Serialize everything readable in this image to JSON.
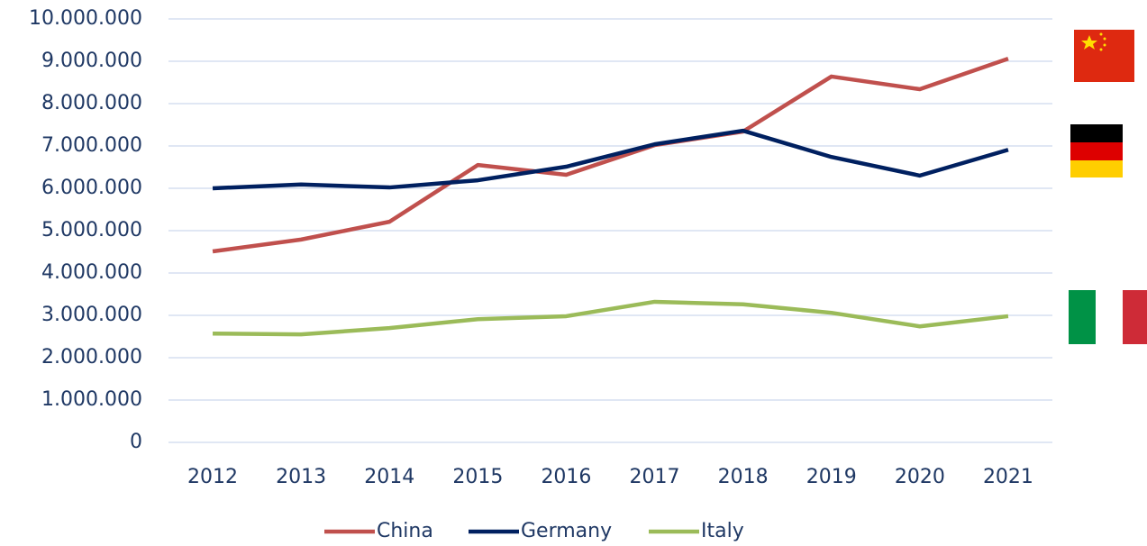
{
  "chart_data": {
    "type": "line",
    "categories": [
      "2012",
      "2013",
      "2014",
      "2015",
      "2016",
      "2017",
      "2018",
      "2019",
      "2020",
      "2021"
    ],
    "series": [
      {
        "name": "China",
        "color": "#c0504d",
        "values": [
          4510000,
          4790000,
          5210000,
          6550000,
          6320000,
          7020000,
          7340000,
          8640000,
          8340000,
          9060000
        ]
      },
      {
        "name": "Germany",
        "color": "#002060",
        "values": [
          6000000,
          6090000,
          6020000,
          6190000,
          6510000,
          7040000,
          7360000,
          6740000,
          6300000,
          6910000
        ]
      },
      {
        "name": "Italy",
        "color": "#9bbb59",
        "values": [
          2570000,
          2550000,
          2700000,
          2910000,
          2980000,
          3320000,
          3260000,
          3060000,
          2740000,
          2980000
        ]
      }
    ],
    "ylim": [
      0,
      10000000
    ],
    "yticks": [
      0,
      {
        "value": 1000000,
        "label": "1.000.000"
      },
      {
        "value": 2000000,
        "label": "2.000.000"
      },
      {
        "value": 3000000,
        "label": "3.000.000"
      },
      {
        "value": 4000000,
        "label": "4.000.000"
      },
      {
        "value": 5000000,
        "label": "5.000.000"
      },
      {
        "value": 6000000,
        "label": "6.000.000"
      },
      {
        "value": 7000000,
        "label": "7.000.000"
      },
      {
        "value": 8000000,
        "label": "8.000.000"
      },
      {
        "value": 9000000,
        "label": "9.000.000"
      },
      {
        "value": 10000000,
        "label": "10.000.000"
      }
    ],
    "grid": true,
    "legend": "bottom"
  }
}
